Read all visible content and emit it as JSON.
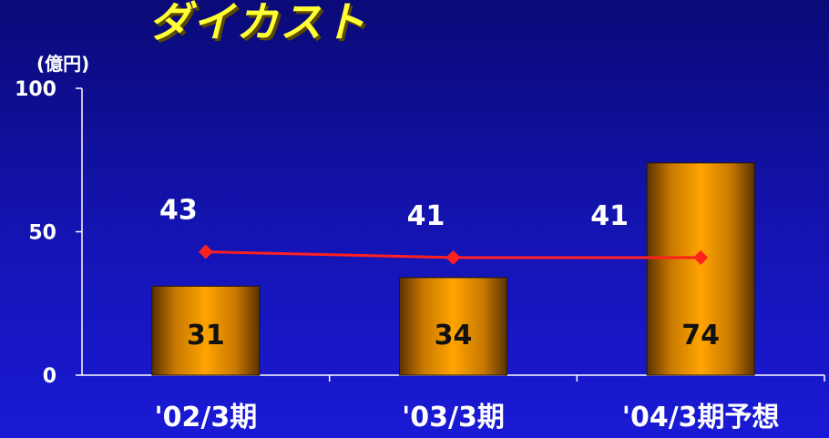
{
  "title": "ダイカスト",
  "chart_data": {
    "type": "bar",
    "unit": "(億円)",
    "categories": [
      "'02/3期",
      "'03/3期",
      "'04/3期予想"
    ],
    "ylim": [
      0,
      100
    ],
    "yticks": [
      "0",
      "50",
      "100"
    ],
    "grid": false,
    "legend": "none",
    "series": [
      {
        "type": "bar",
        "values": [
          31,
          34,
          74
        ],
        "color": "#f5a000"
      },
      {
        "type": "line",
        "values": [
          43,
          41,
          41
        ],
        "color": "#ff2020"
      }
    ]
  }
}
